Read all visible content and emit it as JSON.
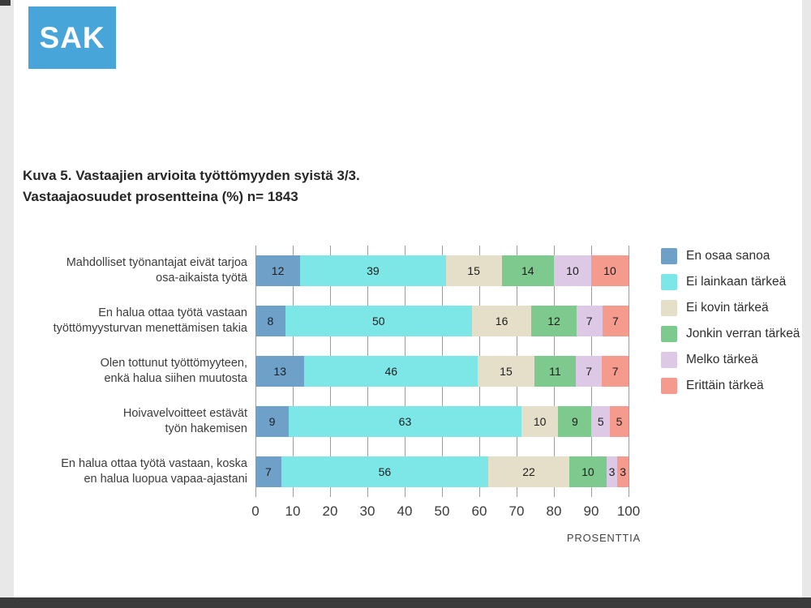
{
  "logo": {
    "text": "SAK",
    "bg": "#47a5d9"
  },
  "title": {
    "line1": "Kuva 5. Vastaajien arvioita työttömyyden syistä 3/3.",
    "line2": "Vastaajaosuudet prosentteina (%) n= 1843"
  },
  "chart_data": {
    "type": "bar",
    "orientation": "horizontal",
    "stacked": true,
    "unit": "%",
    "n_label": "n= 1843",
    "categories": [
      [
        "Mahdolliset työnantajat eivät tarjoa",
        "osa-aikaista työtä"
      ],
      [
        "En halua ottaa työtä vastaan",
        "työttömyysturvan menettämisen takia"
      ],
      [
        "Olen tottunut työttömyyteen,",
        "enkä halua siihen muutosta"
      ],
      [
        "Hoivavelvoitteet estävät",
        "työn hakemisen"
      ],
      [
        "En halua ottaa työtä vastaan, koska",
        "en halua luopua vapaa-ajastani"
      ]
    ],
    "series": [
      {
        "name": "En osaa sanoa",
        "color": "#6fa0c8",
        "values": [
          12,
          8,
          13,
          9,
          7
        ]
      },
      {
        "name": "Ei lainkaan tärkeä",
        "color": "#7de7e8",
        "values": [
          39,
          50,
          46,
          63,
          56
        ]
      },
      {
        "name": "Ei kovin tärkeä",
        "color": "#e5dfca",
        "values": [
          15,
          16,
          15,
          10,
          22
        ]
      },
      {
        "name": "Jonkin verran tärkeä",
        "color": "#7ec98e",
        "values": [
          14,
          12,
          11,
          9,
          10
        ]
      },
      {
        "name": "Melko tärkeä",
        "color": "#ddc8e5",
        "values": [
          10,
          7,
          7,
          5,
          3
        ]
      },
      {
        "name": "Erittäin tärkeä",
        "color": "#f49b8d",
        "values": [
          10,
          7,
          7,
          5,
          3
        ]
      }
    ],
    "xlim": [
      0,
      100
    ],
    "xticks": [
      0,
      10,
      20,
      30,
      40,
      50,
      60,
      70,
      80,
      90,
      100
    ],
    "xlabel": "PROSENTTIA",
    "grid": true,
    "legend_position": "right"
  }
}
